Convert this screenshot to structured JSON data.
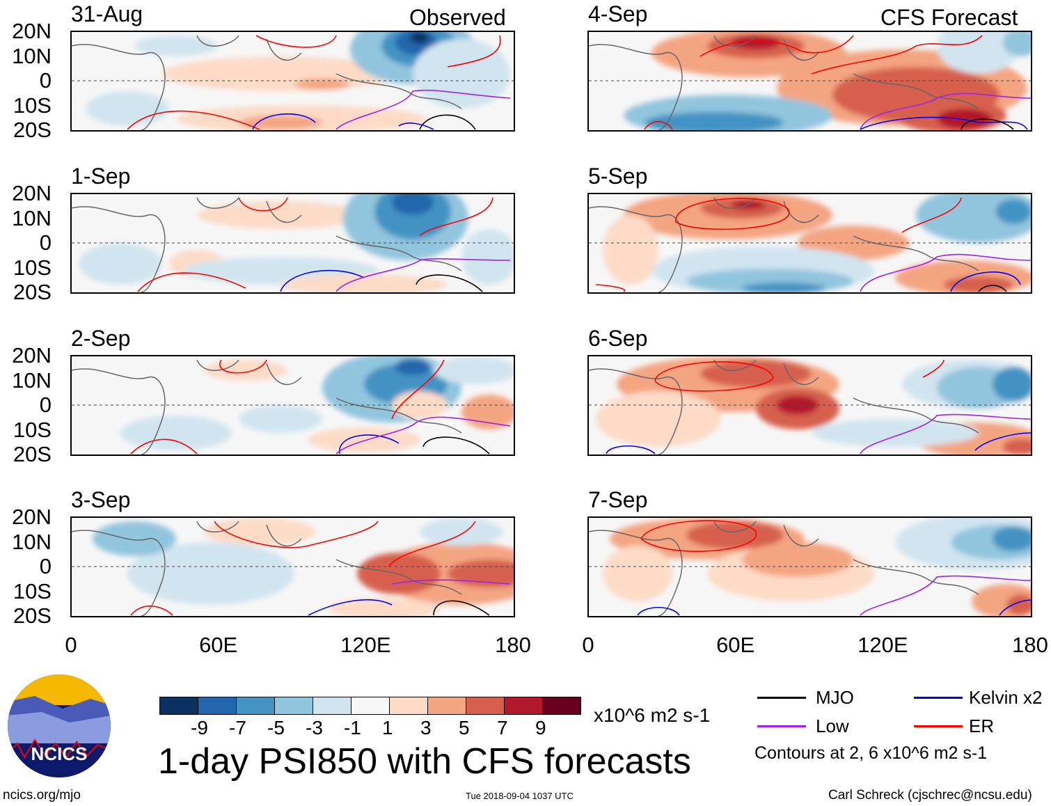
{
  "headers": {
    "left": "Observed",
    "right": "CFS Forecast"
  },
  "panels": [
    {
      "date": "31-Aug",
      "column": "left"
    },
    {
      "date": "1-Sep",
      "column": "left"
    },
    {
      "date": "2-Sep",
      "column": "left"
    },
    {
      "date": "3-Sep",
      "column": "left"
    },
    {
      "date": "4-Sep",
      "column": "right"
    },
    {
      "date": "5-Sep",
      "column": "right"
    },
    {
      "date": "6-Sep",
      "column": "right"
    },
    {
      "date": "7-Sep",
      "column": "right"
    }
  ],
  "lat_ticks": [
    "20N",
    "10N",
    "0",
    "10S",
    "20S"
  ],
  "lon_ticks": [
    "0",
    "60E",
    "120E",
    "180"
  ],
  "colorbar": {
    "colors": [
      "#0b3161",
      "#2166ac",
      "#4393c3",
      "#92c5de",
      "#d1e5f0",
      "#f7f7f7",
      "#fddbc7",
      "#f4a582",
      "#d6604d",
      "#b2182b",
      "#67001f"
    ],
    "labels": [
      "-9",
      "-7",
      "-5",
      "-3",
      "-1",
      "1",
      "3",
      "5",
      "7",
      "9"
    ],
    "units": "x10^6 m2 s-1"
  },
  "legend": [
    {
      "label": "MJO",
      "color": "#000000"
    },
    {
      "label": "Kelvin x2",
      "color": "#0000ff"
    },
    {
      "label": "Low",
      "color": "#a020f0"
    },
    {
      "label": "ER",
      "color": "#ff0000"
    }
  ],
  "contour_note": "Contours at 2, 6 x10^6 m2 s-1",
  "title": "1-day PSI850 with CFS forecasts",
  "logo_text": "NCICS",
  "footer": {
    "left": "ncics.org/mjo",
    "center": "Tue 2018-09-04 1037 UTC",
    "right": "Carl Schreck (cjschrec@ncsu.edu)"
  }
}
